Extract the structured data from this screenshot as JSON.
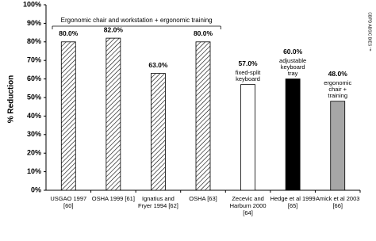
{
  "chart_data": {
    "type": "bar",
    "y_label": "% Reduction",
    "categories": [
      "USGAO 1997\n[60]",
      "OSHA 1999 [61]",
      "Ignatius and\nFryer 1994 [62]",
      "OSHA [63]",
      "Zecevic and\nHarburn 2000\n[64]",
      "Hedge et al 1999\n[65]",
      "Amick et al 2003\n[66]"
    ],
    "values": [
      80,
      82,
      63,
      80,
      57,
      60,
      48
    ],
    "value_labels": [
      "80.0%",
      "82.0%",
      "63.0%",
      "80.0%",
      "57.0%",
      "60.0%",
      "48.0%"
    ],
    "bar_descriptions": [
      null,
      null,
      null,
      null,
      "fixed-split\nkeyboard",
      "adjustable\nkeyboard\ntray",
      "ergonomic\nchair +\ntraining"
    ],
    "colors": [
      "#ffffff",
      "#ffffff",
      "#ffffff",
      "#ffffff",
      "#ffffff",
      "#000000",
      "#a6a6a6"
    ],
    "hatched": [
      true,
      true,
      true,
      true,
      false,
      false,
      false
    ],
    "group_annotation": "Ergonomic chair and workstation + ergonomic training",
    "watermark": "CBPD ABSIC BIES ™",
    "ylim": [
      0,
      100
    ],
    "yticks": [
      {
        "value": 0,
        "label": "0%"
      },
      {
        "value": 10,
        "label": "10%"
      },
      {
        "value": 20,
        "label": "20%"
      },
      {
        "value": 30,
        "label": "30%"
      },
      {
        "value": 40,
        "label": "40%"
      },
      {
        "value": 50,
        "label": "50%"
      },
      {
        "value": 60,
        "label": "60%"
      },
      {
        "value": 70,
        "label": "70%"
      },
      {
        "value": 80,
        "label": "80%"
      },
      {
        "value": 90,
        "label": "90%"
      },
      {
        "value": 100,
        "label": "100%"
      }
    ]
  }
}
